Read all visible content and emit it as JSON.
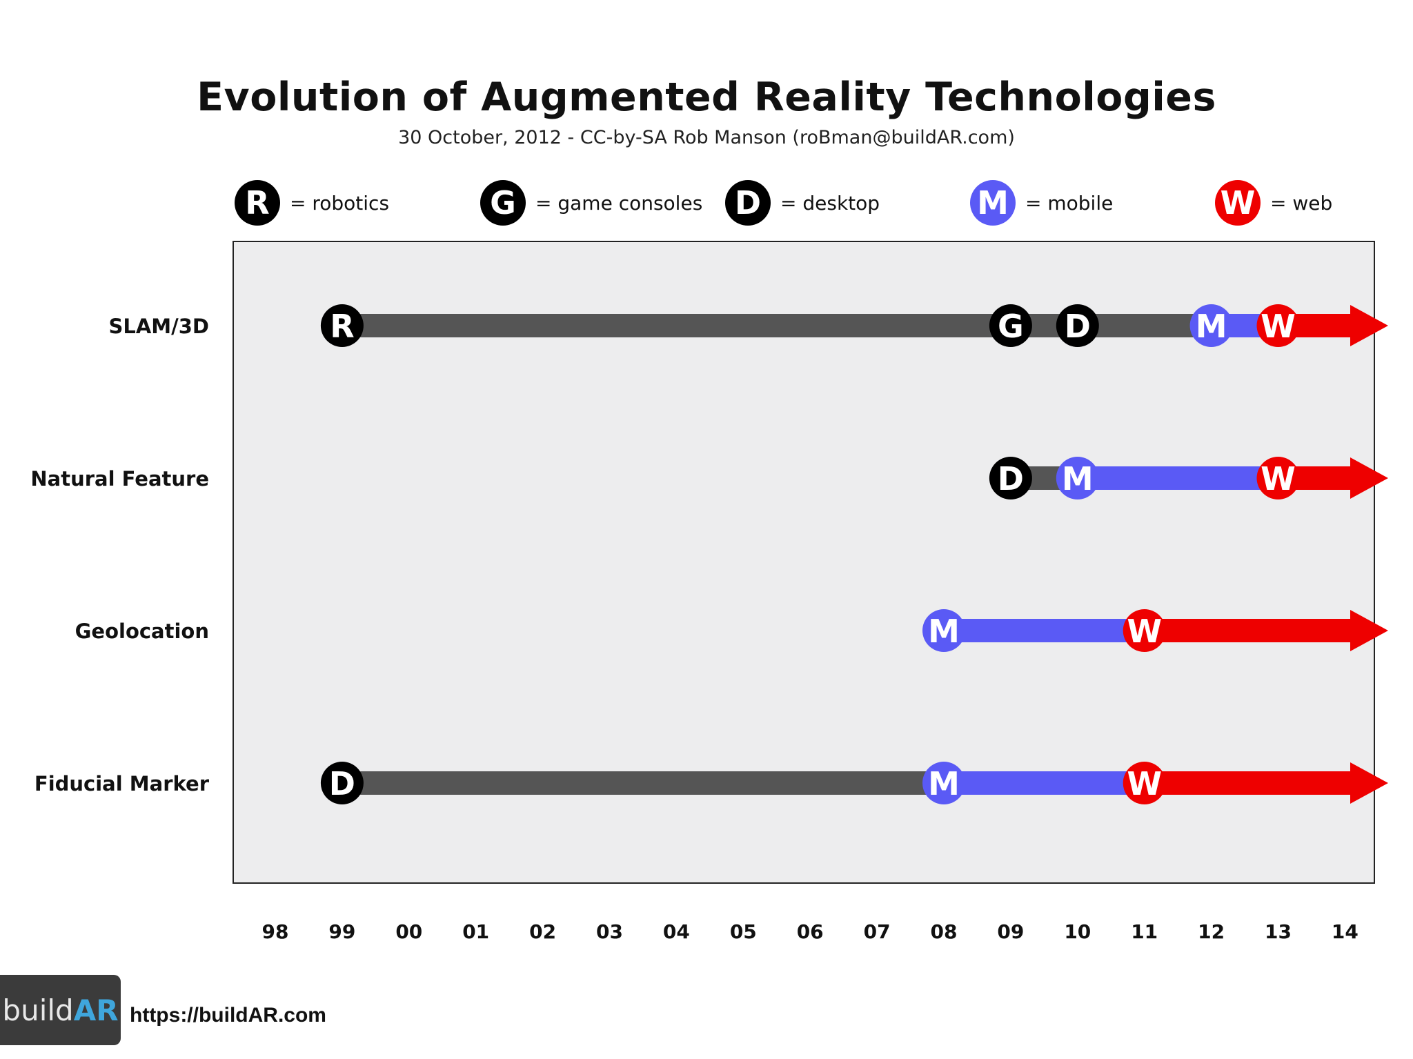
{
  "chart_data": {
    "type": "timeline",
    "title": "Evolution of Augmented Reality Technologies",
    "subtitle": "30 October, 2012 - CC-by-SA Rob Manson (roBman@buildAR.com)",
    "legend": [
      {
        "key": "R",
        "label": "= robotics",
        "color": "#000000"
      },
      {
        "key": "G",
        "label": "= game consoles",
        "color": "#000000"
      },
      {
        "key": "D",
        "label": "= desktop",
        "color": "#000000"
      },
      {
        "key": "M",
        "label": "= mobile",
        "color": "#5a5af5"
      },
      {
        "key": "W",
        "label": "= web",
        "color": "#ee0000"
      }
    ],
    "x_ticks": [
      "98",
      "99",
      "00",
      "01",
      "02",
      "03",
      "04",
      "05",
      "06",
      "07",
      "08",
      "09",
      "10",
      "11",
      "12",
      "13",
      "14"
    ],
    "x_range": [
      1998,
      2014
    ],
    "rows": [
      {
        "label": "SLAM/3D",
        "milestones": [
          {
            "key": "R",
            "year": 1999
          },
          {
            "key": "G",
            "year": 2009
          },
          {
            "key": "D",
            "year": 2010
          },
          {
            "key": "M",
            "year": 2012
          },
          {
            "key": "W",
            "year": 2013
          }
        ]
      },
      {
        "label": "Natural Feature",
        "milestones": [
          {
            "key": "D",
            "year": 2009
          },
          {
            "key": "M",
            "year": 2010
          },
          {
            "key": "W",
            "year": 2013
          }
        ]
      },
      {
        "label": "Geolocation",
        "milestones": [
          {
            "key": "M",
            "year": 2008
          },
          {
            "key": "W",
            "year": 2011
          }
        ]
      },
      {
        "label": "Fiducial Marker",
        "milestones": [
          {
            "key": "D",
            "year": 1999
          },
          {
            "key": "M",
            "year": 2008
          },
          {
            "key": "W",
            "year": 2011
          }
        ]
      }
    ],
    "segment_colors": {
      "R": "#555555",
      "G": "#555555",
      "D": "#555555",
      "M": "#5a5af5",
      "W": "#ee0000"
    },
    "plot_background": "#ededee"
  },
  "footer": {
    "logo_prefix": "build",
    "logo_suffix": "AR",
    "url": "https://buildAR.com"
  }
}
